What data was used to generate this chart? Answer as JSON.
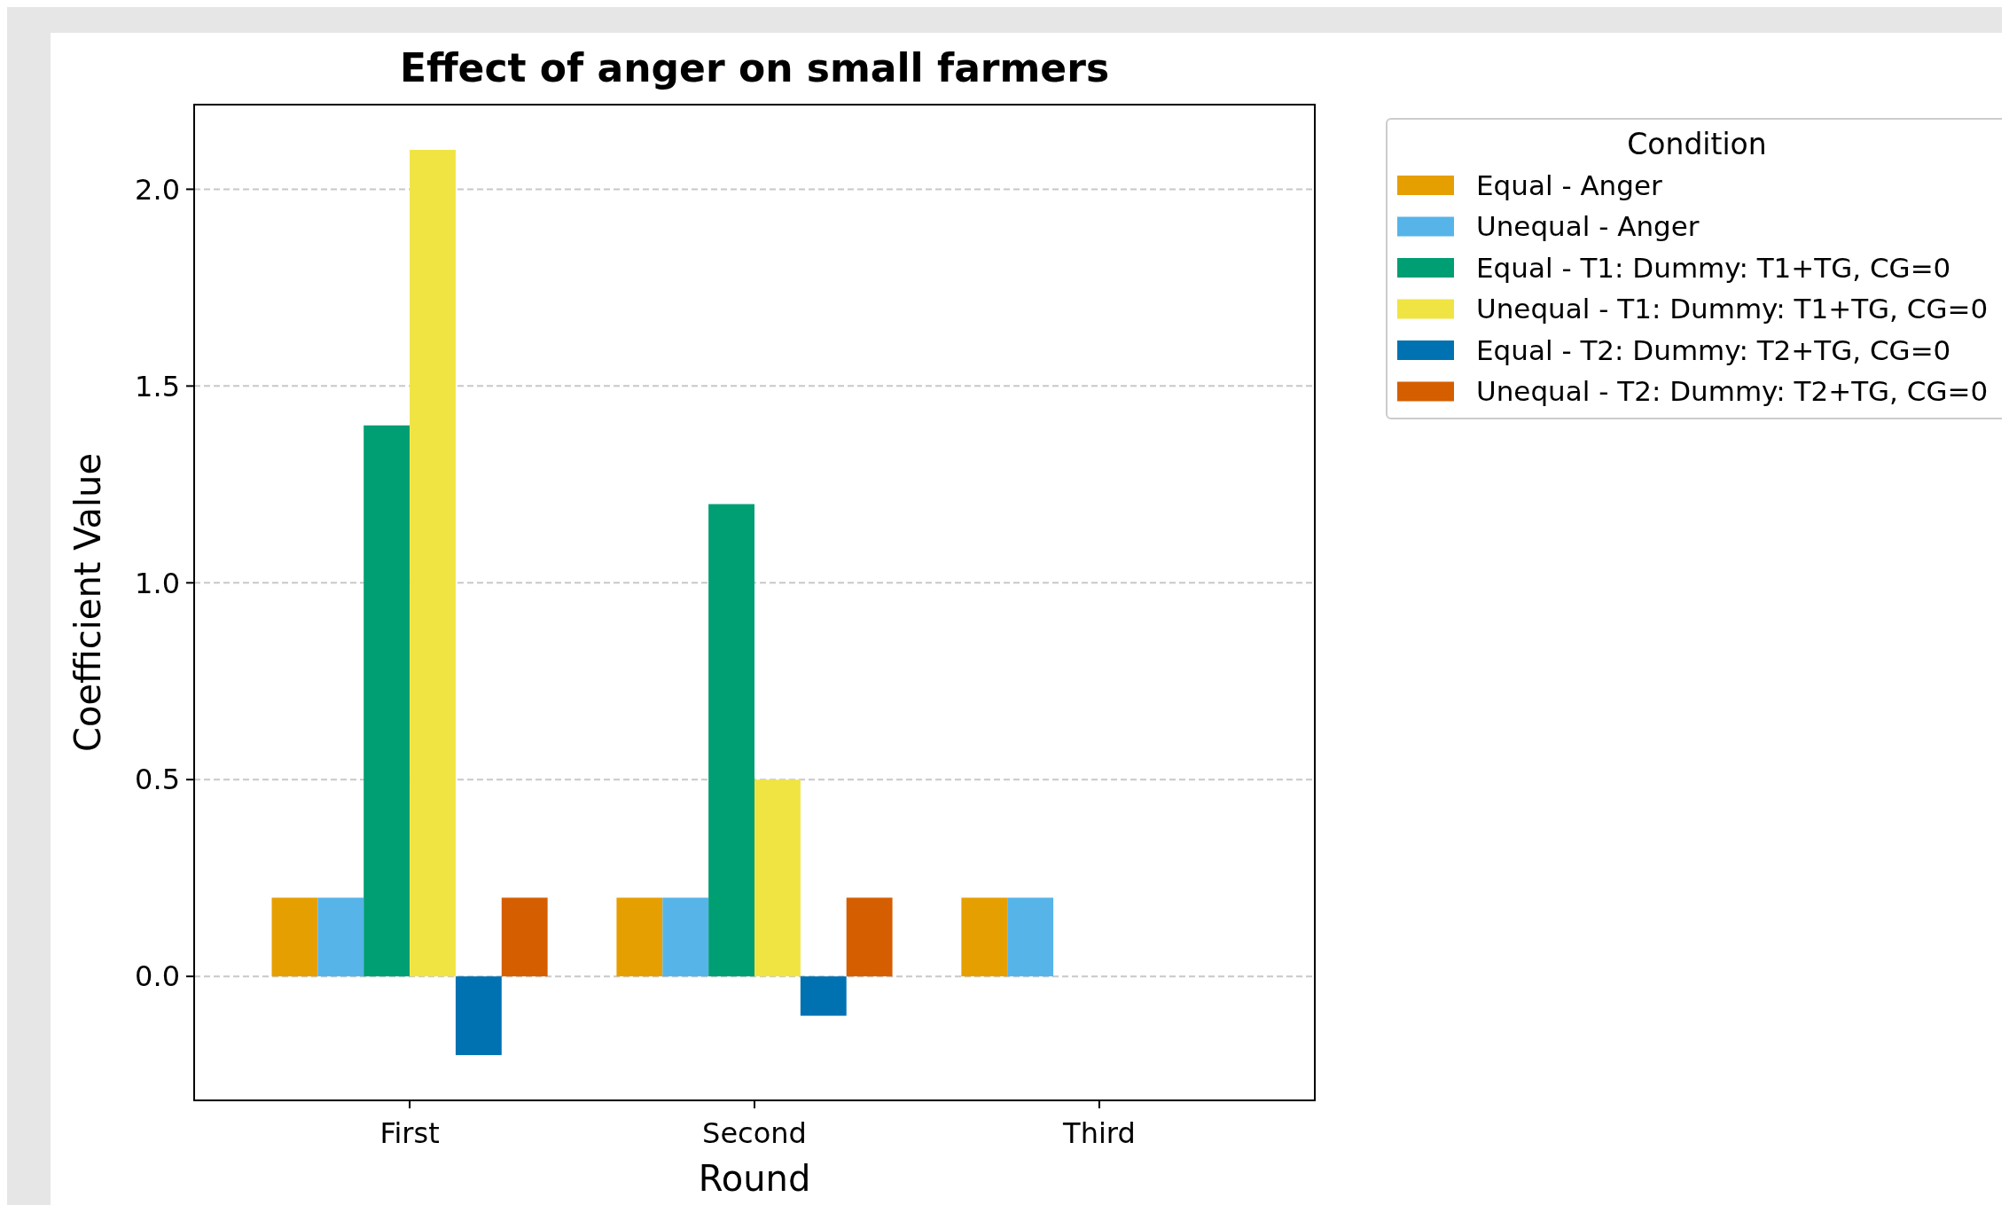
{
  "chart_data": {
    "type": "bar",
    "title": "Effect of anger on small farmers",
    "xlabel": "Round",
    "ylabel": "Coefficient Value",
    "legend_title": "Condition",
    "categories": [
      "First",
      "Second",
      "Third"
    ],
    "series": [
      {
        "name": "Equal - Anger",
        "color": "#e69f00",
        "values": [
          0.2,
          0.2,
          0.2
        ]
      },
      {
        "name": "Unequal - Anger",
        "color": "#56b4e9",
        "values": [
          0.2,
          0.2,
          0.2
        ]
      },
      {
        "name": "Equal - T1: Dummy: T1+TG, CG=0",
        "color": "#009e73",
        "values": [
          1.4,
          1.2,
          null
        ]
      },
      {
        "name": "Unequal - T1: Dummy: T1+TG, CG=0",
        "color": "#f0e442",
        "values": [
          2.1,
          0.5,
          null
        ]
      },
      {
        "name": "Equal - T2: Dummy: T2+TG, CG=0",
        "color": "#0072b2",
        "values": [
          -0.2,
          -0.1,
          null
        ]
      },
      {
        "name": "Unequal - T2: Dummy: T2+TG, CG=0",
        "color": "#d55e00",
        "values": [
          0.2,
          0.2,
          null
        ]
      }
    ],
    "ylim": [
      -0.315,
      2.215
    ],
    "yticks": [
      {
        "value": 0,
        "label": "0.0"
      },
      {
        "value": 0.5,
        "label": "0.5"
      },
      {
        "value": 1,
        "label": "1.0"
      },
      {
        "value": 1.5,
        "label": "1.5"
      },
      {
        "value": 2,
        "label": "2.0"
      }
    ],
    "grid": "y",
    "legend": "top right"
  }
}
